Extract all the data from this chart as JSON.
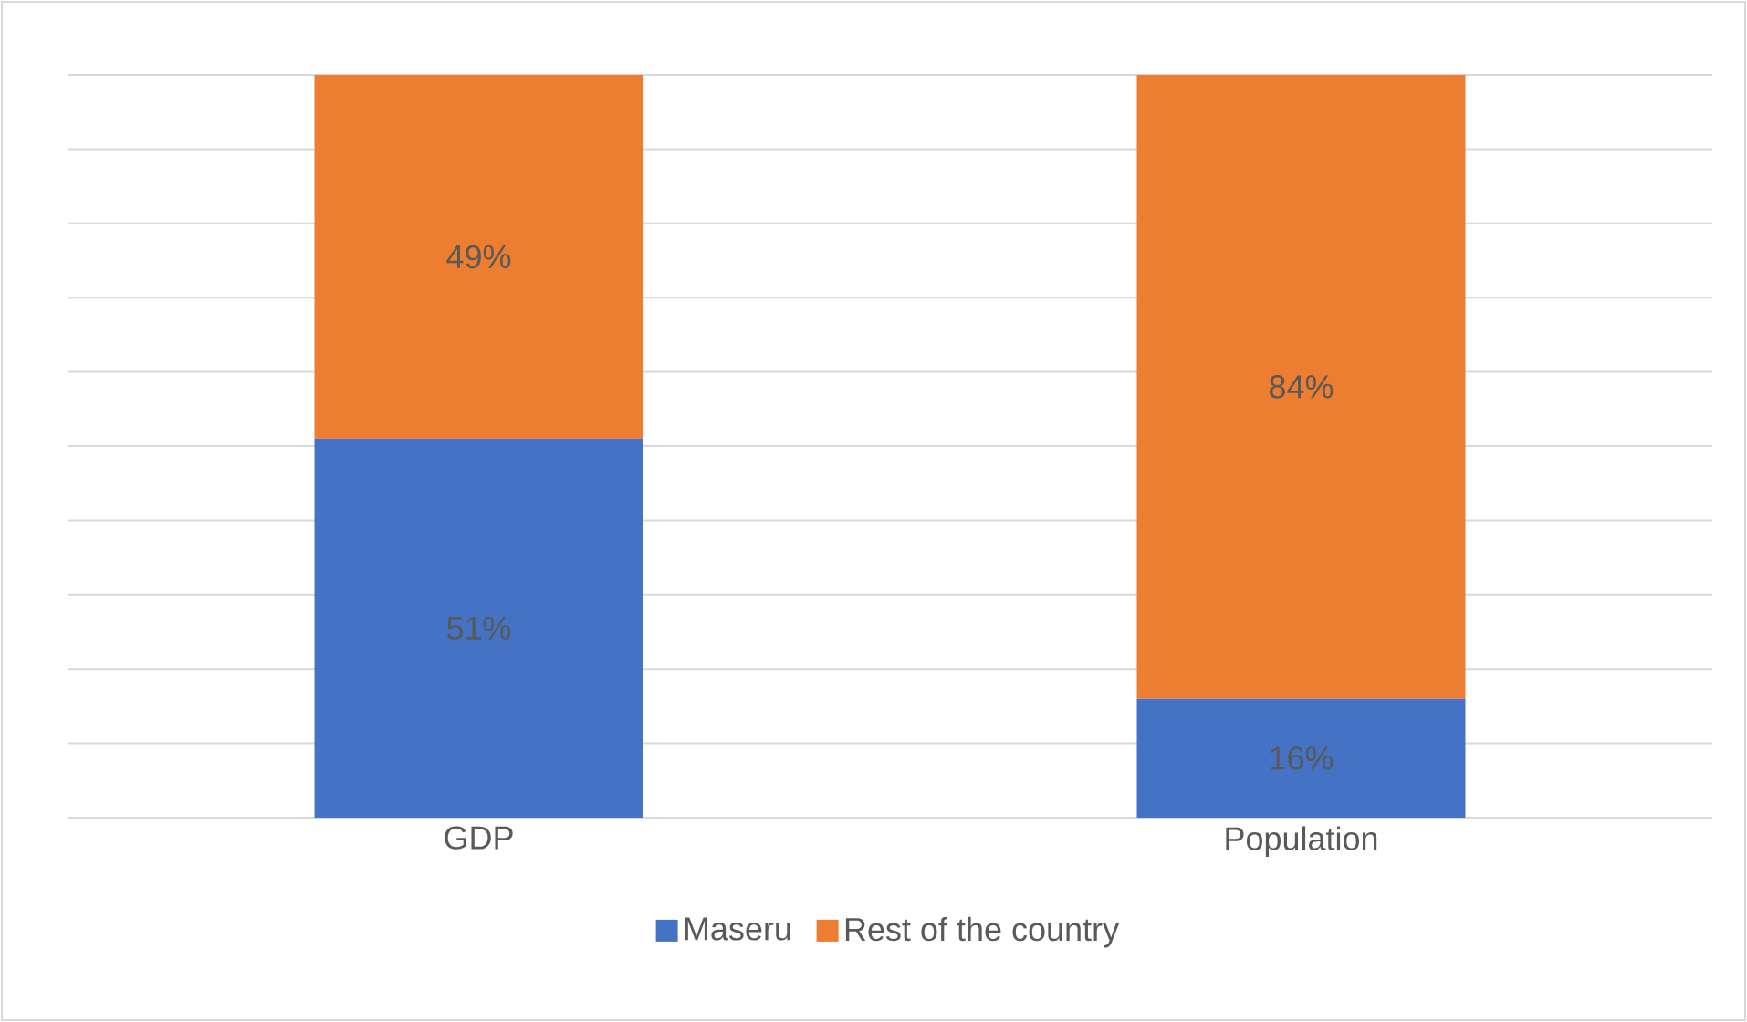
{
  "chart_data": {
    "type": "bar",
    "stacked": true,
    "categories": [
      "GDP",
      "Population"
    ],
    "series": [
      {
        "name": "Maseru",
        "color": "#4472c4",
        "values": [
          51,
          16
        ],
        "value_labels": [
          "51%",
          "16%"
        ]
      },
      {
        "name": "Rest of the country",
        "color": "#ed7d31",
        "values": [
          49,
          84
        ],
        "value_labels": [
          "49%",
          "84%"
        ]
      }
    ],
    "ylim": [
      0,
      100
    ],
    "yticks": [
      {
        "value": 0,
        "label": null
      },
      {
        "value": 10,
        "label": null
      },
      {
        "value": 20,
        "label": null
      },
      {
        "value": 30,
        "label": null
      },
      {
        "value": 40,
        "label": null
      },
      {
        "value": 50,
        "label": null
      },
      {
        "value": 60,
        "label": null
      },
      {
        "value": 70,
        "label": null
      },
      {
        "value": 80,
        "label": null
      },
      {
        "value": 90,
        "label": null
      },
      {
        "value": 100,
        "label": null
      }
    ],
    "grid": "y",
    "legend": "bottom",
    "tick_labels": "x"
  }
}
